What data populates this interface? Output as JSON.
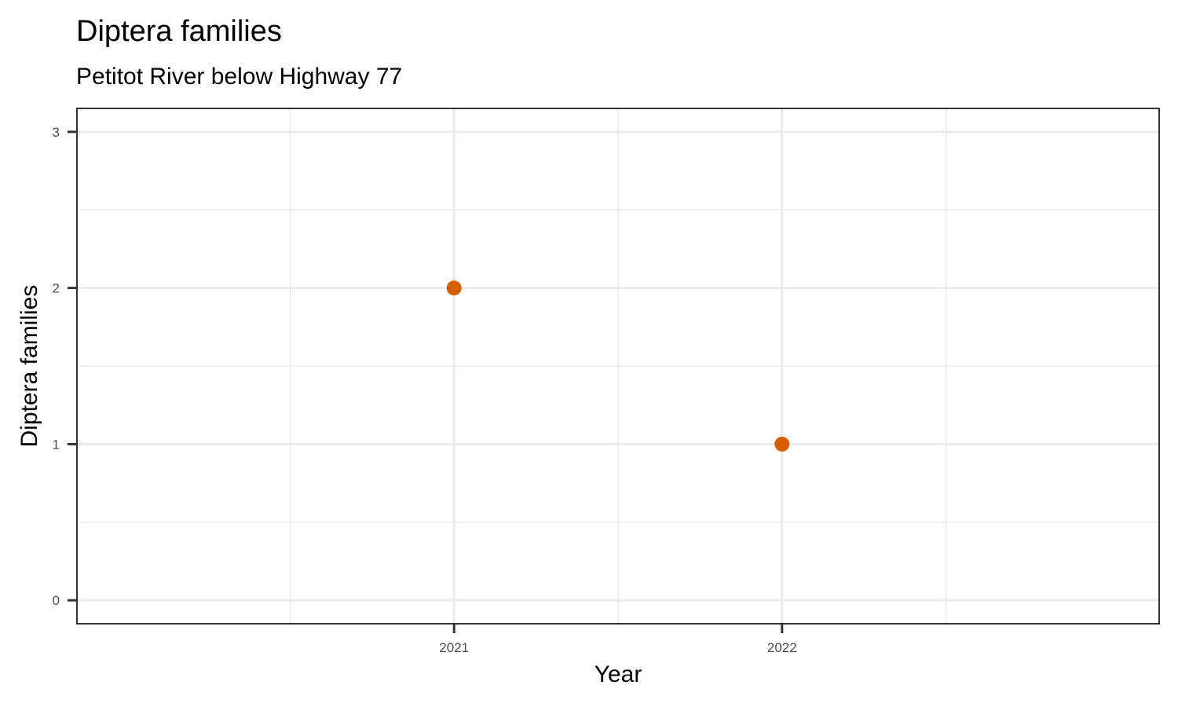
{
  "chart_data": {
    "type": "scatter",
    "title": "Diptera families",
    "subtitle": "Petitot River below Highway 77",
    "xlabel": "Year",
    "ylabel": "Diptera families",
    "x_ticks": [
      "2021",
      "2022"
    ],
    "y_ticks": [
      "0",
      "1",
      "2",
      "3"
    ],
    "xlim": [
      2019.85,
      2023.15
    ],
    "ylim": [
      -0.15,
      3.15
    ],
    "grid": true,
    "legend": "none",
    "points": [
      {
        "x": 2021,
        "y": 2
      },
      {
        "x": 2022,
        "y": 1
      }
    ],
    "point_color": "#D55E00"
  }
}
